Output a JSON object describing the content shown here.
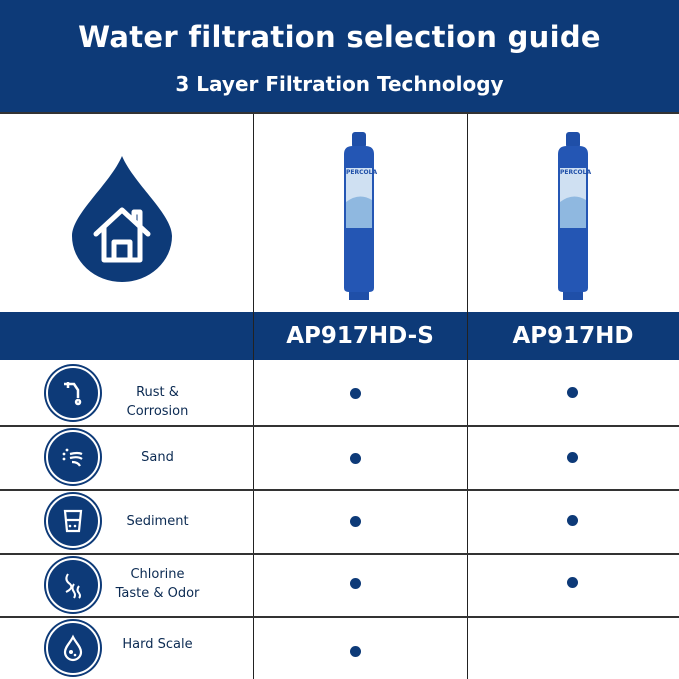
{
  "header": {
    "title": "Water filtration selection guide",
    "subtitle": "3 Layer Filtration Technology"
  },
  "brand_logo_text": "PERCOLA",
  "colors": {
    "primary": "#0d3a78"
  },
  "products": [
    {
      "model": "AP917HD-S"
    },
    {
      "model": "AP917HD"
    }
  ],
  "features": [
    {
      "label": "Rust & Corrosion",
      "icon": "faucet-rust-icon",
      "supported": [
        true,
        true
      ]
    },
    {
      "label": "Sand",
      "icon": "sand-swirl-icon",
      "supported": [
        true,
        true
      ]
    },
    {
      "label": "Sediment",
      "icon": "glass-sediment-icon",
      "supported": [
        true,
        true
      ]
    },
    {
      "label": "Chlorine\nTaste & Odor",
      "icon": "odor-icon",
      "supported": [
        true,
        true
      ]
    },
    {
      "label": "Hard Scale",
      "icon": "scale-drop-icon",
      "supported": [
        true,
        false
      ]
    }
  ]
}
